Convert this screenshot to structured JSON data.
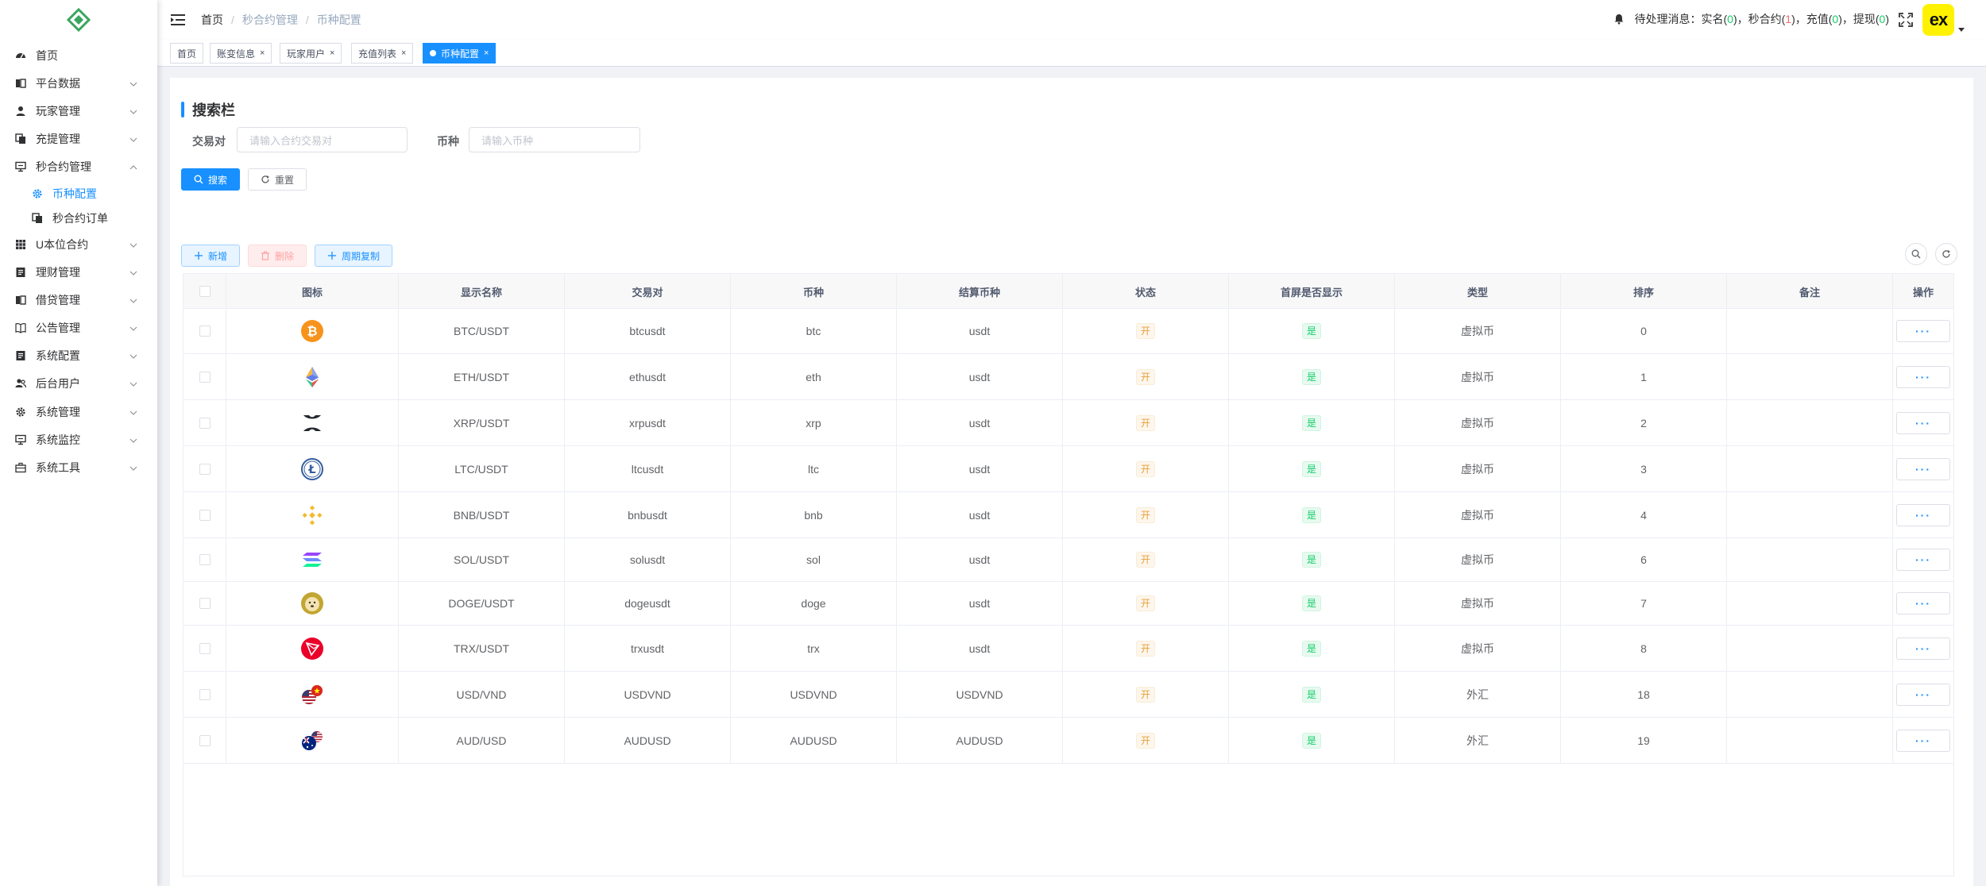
{
  "sidebar": {
    "items": [
      {
        "label": "首页",
        "icon": "dashboard-icon",
        "expandable": false
      },
      {
        "label": "平台数据",
        "icon": "data-icon",
        "expandable": true
      },
      {
        "label": "玩家管理",
        "icon": "user-icon",
        "expandable": true
      },
      {
        "label": "充提管理",
        "icon": "copy-icon",
        "expandable": true
      },
      {
        "label": "秒合约管理",
        "icon": "monitor-icon",
        "expandable": true,
        "expanded": true
      },
      {
        "label": "币种配置",
        "icon": "gear-icon",
        "sub": true,
        "active": true
      },
      {
        "label": "秒合约订单",
        "icon": "copy-icon",
        "sub": true
      },
      {
        "label": "U本位合约",
        "icon": "grid-icon",
        "expandable": true
      },
      {
        "label": "理财管理",
        "icon": "doc-icon",
        "expandable": true
      },
      {
        "label": "借贷管理",
        "icon": "data-icon",
        "expandable": true
      },
      {
        "label": "公告管理",
        "icon": "book-icon",
        "expandable": true
      },
      {
        "label": "系统配置",
        "icon": "doc-icon",
        "expandable": true
      },
      {
        "label": "后台用户",
        "icon": "users-icon",
        "expandable": true
      },
      {
        "label": "系统管理",
        "icon": "gear-icon",
        "expandable": true
      },
      {
        "label": "系统监控",
        "icon": "monitor-icon",
        "expandable": true
      },
      {
        "label": "系统工具",
        "icon": "toolbox-icon",
        "expandable": true
      }
    ]
  },
  "header": {
    "breadcrumb": [
      "首页",
      "秒合约管理",
      "币种配置"
    ],
    "notice": {
      "prefix": "待处理消息：",
      "realname_label": "实名(",
      "realname_count": "0",
      "seconds_label": ")，秒合约(",
      "seconds_count": "1",
      "recharge_label": ")，充值(",
      "recharge_count": "0",
      "withdraw_label": ")，提现(",
      "withdraw_count": "0",
      "suffix": ")"
    },
    "avatar_text": "ex"
  },
  "tags": [
    {
      "label": "首页",
      "closable": false
    },
    {
      "label": "账变信息",
      "closable": true
    },
    {
      "label": "玩家用户",
      "closable": true
    },
    {
      "label": "充值列表",
      "closable": true
    },
    {
      "label": "币种配置",
      "closable": true,
      "active": true
    }
  ],
  "search": {
    "title": "搜索栏",
    "pair_label": "交易对",
    "pair_placeholder": "请输入合约交易对",
    "coin_label": "币种",
    "coin_placeholder": "请输入币种",
    "search_button": "搜索",
    "reset_button": "重置"
  },
  "toolbar": {
    "add": "新增",
    "delete": "删除",
    "copy": "周期复制"
  },
  "table": {
    "columns": [
      "图标",
      "显示名称",
      "交易对",
      "币种",
      "结算币种",
      "状态",
      "首屏是否显示",
      "类型",
      "排序",
      "备注",
      "操作"
    ],
    "op_label": "···",
    "rows": [
      {
        "icon": "btc-icon",
        "name": "BTC/USDT",
        "pair": "btcusdt",
        "coin": "btc",
        "settle": "usdt",
        "status": "开",
        "home": "是",
        "type": "虚拟币",
        "sort": "0",
        "remark": ""
      },
      {
        "icon": "eth-icon",
        "name": "ETH/USDT",
        "pair": "ethusdt",
        "coin": "eth",
        "settle": "usdt",
        "status": "开",
        "home": "是",
        "type": "虚拟币",
        "sort": "1",
        "remark": ""
      },
      {
        "icon": "xrp-icon",
        "name": "XRP/USDT",
        "pair": "xrpusdt",
        "coin": "xrp",
        "settle": "usdt",
        "status": "开",
        "home": "是",
        "type": "虚拟币",
        "sort": "2",
        "remark": ""
      },
      {
        "icon": "ltc-icon",
        "name": "LTC/USDT",
        "pair": "ltcusdt",
        "coin": "ltc",
        "settle": "usdt",
        "status": "开",
        "home": "是",
        "type": "虚拟币",
        "sort": "3",
        "remark": ""
      },
      {
        "icon": "bnb-icon",
        "name": "BNB/USDT",
        "pair": "bnbusdt",
        "coin": "bnb",
        "settle": "usdt",
        "status": "开",
        "home": "是",
        "type": "虚拟币",
        "sort": "4",
        "remark": ""
      },
      {
        "icon": "sol-icon",
        "name": "SOL/USDT",
        "pair": "solusdt",
        "coin": "sol",
        "settle": "usdt",
        "status": "开",
        "home": "是",
        "type": "虚拟币",
        "sort": "6",
        "remark": ""
      },
      {
        "icon": "doge-icon",
        "name": "DOGE/USDT",
        "pair": "dogeusdt",
        "coin": "doge",
        "settle": "usdt",
        "status": "开",
        "home": "是",
        "type": "虚拟币",
        "sort": "7",
        "remark": ""
      },
      {
        "icon": "trx-icon",
        "name": "TRX/USDT",
        "pair": "trxusdt",
        "coin": "trx",
        "settle": "usdt",
        "status": "开",
        "home": "是",
        "type": "虚拟币",
        "sort": "8",
        "remark": ""
      },
      {
        "icon": "usd-vnd-flag-icon",
        "name": "USD/VND",
        "pair": "USDVND",
        "coin": "USDVND",
        "settle": "USDVND",
        "status": "开",
        "home": "是",
        "type": "外汇",
        "sort": "18",
        "remark": ""
      },
      {
        "icon": "aud-usd-flag-icon",
        "name": "AUD/USD",
        "pair": "AUDUSD",
        "coin": "AUDUSD",
        "settle": "AUDUSD",
        "status": "开",
        "home": "是",
        "type": "外汇",
        "sort": "19",
        "remark": ""
      }
    ]
  },
  "colors": {
    "primary": "#1890ff",
    "danger_light": "#ffa1a1",
    "warning": "#e6a23c",
    "success": "#13ce66",
    "avatar_bg": "#fff200"
  }
}
